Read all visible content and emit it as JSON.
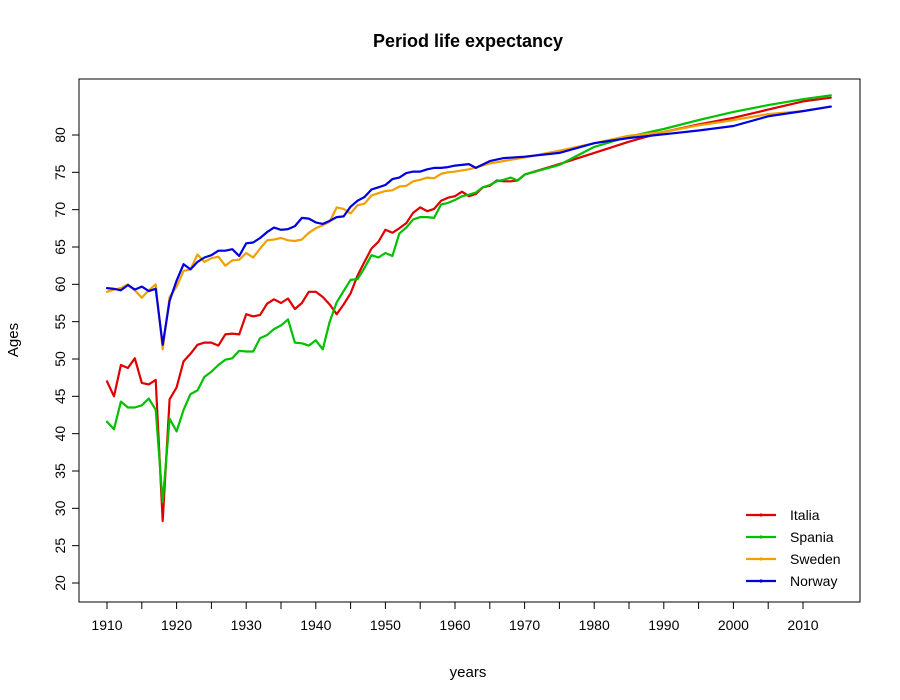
{
  "chart_data": {
    "type": "line",
    "title": "Period life expectancy",
    "xlabel": "years",
    "ylabel": "Ages",
    "xlim": [
      1906,
      2016
    ],
    "ylim": [
      17,
      87
    ],
    "x_ticks": [
      1910,
      1920,
      1930,
      1940,
      1950,
      1960,
      1970,
      1980,
      1990,
      2000,
      2010
    ],
    "y_ticks": [
      20,
      25,
      30,
      35,
      40,
      45,
      50,
      55,
      60,
      65,
      70,
      75,
      80
    ],
    "x_minor_ticks": [
      1915,
      1925,
      1935,
      1945,
      1955,
      1965,
      1975,
      1985,
      1995,
      2005
    ],
    "grid": false,
    "legend_position": "bottom-right",
    "series": [
      {
        "name": "Italia",
        "color": "#DF0000",
        "x": [
          1910,
          1911,
          1912,
          1913,
          1914,
          1915,
          1916,
          1917,
          1918,
          1919,
          1920,
          1921,
          1922,
          1923,
          1924,
          1925,
          1926,
          1927,
          1928,
          1929,
          1930,
          1931,
          1932,
          1933,
          1934,
          1935,
          1936,
          1937,
          1938,
          1939,
          1940,
          1941,
          1942,
          1943,
          1944,
          1945,
          1946,
          1947,
          1948,
          1949,
          1950,
          1951,
          1952,
          1953,
          1954,
          1955,
          1956,
          1957,
          1958,
          1959,
          1960,
          1961,
          1962,
          1963,
          1964,
          1965,
          1966,
          1967,
          1968,
          1969,
          1970,
          1975,
          1980,
          1985,
          1990,
          1995,
          2000,
          2005,
          2010,
          2014
        ],
        "y": [
          47.0,
          45.0,
          49.2,
          48.8,
          50.1,
          46.8,
          46.6,
          47.2,
          28.3,
          44.6,
          46.2,
          49.7,
          50.7,
          51.9,
          52.2,
          52.2,
          51.8,
          53.3,
          53.4,
          53.3,
          56.0,
          55.7,
          55.9,
          57.4,
          58.0,
          57.5,
          58.1,
          56.7,
          57.5,
          59.0,
          59.0,
          58.3,
          57.3,
          56.0,
          57.3,
          58.8,
          61.2,
          63.0,
          64.8,
          65.7,
          67.3,
          66.9,
          67.5,
          68.2,
          69.6,
          70.3,
          69.8,
          70.1,
          71.2,
          71.6,
          71.8,
          72.4,
          71.8,
          72.1,
          73.0,
          73.2,
          73.9,
          73.8,
          73.8,
          73.9,
          74.7,
          76.1,
          77.6,
          79.1,
          80.4,
          81.4,
          82.3,
          83.4,
          84.5,
          85.0
        ]
      },
      {
        "name": "Spania",
        "color": "#00C000",
        "x": [
          1910,
          1911,
          1912,
          1913,
          1914,
          1915,
          1916,
          1917,
          1918,
          1919,
          1920,
          1921,
          1922,
          1923,
          1924,
          1925,
          1926,
          1927,
          1928,
          1929,
          1930,
          1931,
          1932,
          1933,
          1934,
          1935,
          1936,
          1937,
          1938,
          1939,
          1940,
          1941,
          1942,
          1943,
          1944,
          1945,
          1946,
          1947,
          1948,
          1949,
          1950,
          1951,
          1952,
          1953,
          1954,
          1955,
          1956,
          1957,
          1958,
          1959,
          1960,
          1961,
          1962,
          1963,
          1964,
          1965,
          1966,
          1967,
          1968,
          1969,
          1970,
          1975,
          1980,
          1985,
          1990,
          1995,
          2000,
          2005,
          2010,
          2014
        ],
        "y": [
          41.6,
          40.6,
          44.3,
          43.5,
          43.5,
          43.8,
          44.7,
          43.2,
          30.8,
          42.0,
          40.3,
          43.2,
          45.3,
          45.8,
          47.6,
          48.3,
          49.2,
          49.9,
          50.1,
          51.1,
          51.0,
          51.0,
          52.8,
          53.2,
          54.0,
          54.5,
          55.3,
          52.2,
          52.1,
          51.8,
          52.5,
          51.3,
          55.0,
          57.6,
          59.1,
          60.6,
          60.7,
          62.2,
          63.9,
          63.6,
          64.2,
          63.8,
          66.8,
          67.6,
          68.7,
          69.0,
          69.0,
          68.9,
          70.7,
          70.9,
          71.3,
          71.8,
          72.0,
          72.3,
          73.0,
          73.3,
          73.8,
          74.0,
          74.3,
          73.9,
          74.7,
          76.0,
          78.4,
          79.8,
          80.8,
          82.0,
          83.1,
          84.0,
          84.8,
          85.3
        ]
      },
      {
        "name": "Sweden",
        "color": "#F0A000",
        "x": [
          1910,
          1911,
          1912,
          1913,
          1914,
          1915,
          1916,
          1917,
          1918,
          1919,
          1920,
          1921,
          1922,
          1923,
          1924,
          1925,
          1926,
          1927,
          1928,
          1929,
          1930,
          1931,
          1932,
          1933,
          1934,
          1935,
          1936,
          1937,
          1938,
          1939,
          1940,
          1941,
          1942,
          1943,
          1944,
          1945,
          1946,
          1947,
          1948,
          1949,
          1950,
          1951,
          1952,
          1953,
          1954,
          1955,
          1956,
          1957,
          1958,
          1959,
          1960,
          1962,
          1965,
          1970,
          1975,
          1980,
          1985,
          1990,
          1995,
          2000,
          2005,
          2010,
          2014
        ],
        "y": [
          59.0,
          59.3,
          59.5,
          60.0,
          59.2,
          58.2,
          59.2,
          60.0,
          51.3,
          58.3,
          59.7,
          61.8,
          62.0,
          64.0,
          63.0,
          63.5,
          63.7,
          62.5,
          63.2,
          63.3,
          64.2,
          63.6,
          64.8,
          65.9,
          66.0,
          66.2,
          65.9,
          65.8,
          66.0,
          66.9,
          67.5,
          67.9,
          68.4,
          70.3,
          70.1,
          69.5,
          70.6,
          70.8,
          71.9,
          72.2,
          72.5,
          72.6,
          73.1,
          73.2,
          73.8,
          74.0,
          74.3,
          74.2,
          74.8,
          75.0,
          75.1,
          75.4,
          76.2,
          77.0,
          77.9,
          78.9,
          79.9,
          80.4,
          81.3,
          82.0,
          82.8,
          83.2,
          83.8
        ]
      },
      {
        "name": "Norway",
        "color": "#0000E0",
        "x": [
          1910,
          1911,
          1912,
          1913,
          1914,
          1915,
          1916,
          1917,
          1918,
          1919,
          1920,
          1921,
          1922,
          1923,
          1924,
          1925,
          1926,
          1927,
          1928,
          1929,
          1930,
          1931,
          1932,
          1933,
          1934,
          1935,
          1936,
          1937,
          1938,
          1939,
          1940,
          1941,
          1942,
          1943,
          1944,
          1945,
          1946,
          1947,
          1948,
          1949,
          1950,
          1951,
          1952,
          1953,
          1954,
          1955,
          1956,
          1957,
          1958,
          1959,
          1960,
          1961,
          1962,
          1963,
          1965,
          1967,
          1970,
          1975,
          1980,
          1985,
          1990,
          1995,
          2000,
          2005,
          2010,
          2014
        ],
        "y": [
          59.5,
          59.4,
          59.2,
          59.9,
          59.3,
          59.7,
          59.1,
          59.4,
          51.9,
          57.8,
          60.5,
          62.7,
          62.0,
          63.0,
          63.6,
          63.9,
          64.5,
          64.5,
          64.7,
          63.8,
          65.5,
          65.6,
          66.2,
          67.0,
          67.6,
          67.3,
          67.4,
          67.8,
          68.9,
          68.8,
          68.3,
          68.1,
          68.5,
          69.0,
          69.1,
          70.4,
          71.2,
          71.7,
          72.7,
          73.0,
          73.3,
          74.1,
          74.3,
          74.9,
          75.1,
          75.1,
          75.4,
          75.6,
          75.6,
          75.7,
          75.9,
          76.0,
          76.1,
          75.6,
          76.5,
          76.9,
          77.1,
          77.6,
          78.9,
          79.6,
          80.1,
          80.6,
          81.2,
          82.5,
          83.2,
          83.8
        ]
      }
    ]
  }
}
